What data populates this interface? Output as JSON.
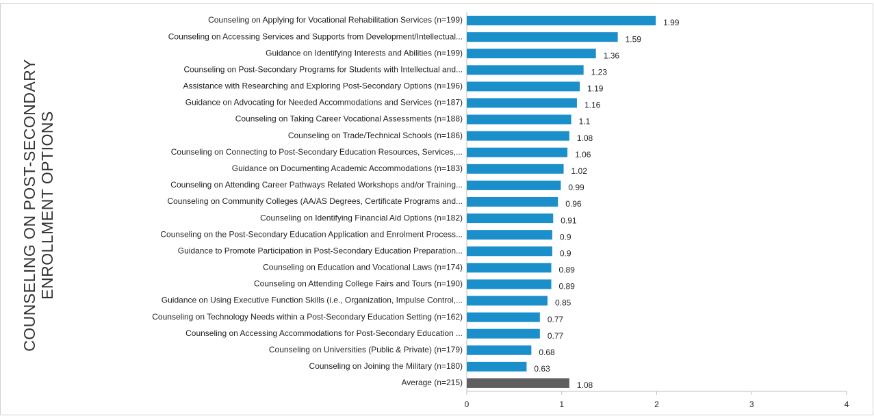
{
  "chart_data": {
    "type": "barh",
    "ylabel": [
      "COUNSELING ON POST-SECONDARY",
      "ENROLLMENT OPTIONS"
    ],
    "categories": [
      "Counseling on Applying for Vocational Rehabilitation Services (n=199)",
      "Counseling on Accessing Services and Supports from Development/Intellectual...",
      "Guidance on Identifying Interests and Abilities (n=199)",
      "Counseling on Post-Secondary Programs for Students with Intellectual and...",
      "Assistance with Researching and Exploring Post-Secondary Options (n=196)",
      "Guidance on Advocating for Needed Accommodations and Services (n=187)",
      "Counseling on Taking Career Vocational Assessments (n=188)",
      "Counseling on Trade/Technical Schools (n=186)",
      "Counseling on Connecting to Post-Secondary Education Resources, Services,...",
      "Guidance on Documenting Academic Accommodations (n=183)",
      "Counseling on Attending Career Pathways Related Workshops and/or Training...",
      "Counseling on Community Colleges (AA/AS Degrees, Certificate Programs and...",
      "Counseling on Identifying Financial Aid Options (n=182)",
      "Counseling on the Post-Secondary Education Application and Enrolment Process...",
      "Guidance to Promote Participation in Post-Secondary Education Preparation...",
      "Counseling on Education and Vocational Laws (n=174)",
      "Counseling on Attending College Fairs and Tours (n=190)",
      "Guidance on Using Executive Function Skills (i.e., Organization, Impulse Control,...",
      "Counseling on Technology Needs within a Post-Secondary Education Setting (n=162)",
      "Counseling on Accessing Accommodations for Post-Secondary Education ...",
      "Counseling on Universities (Public & Private) (n=179)",
      "Counseling on Joining the Military (n=180)",
      "Average (n=215)"
    ],
    "values": [
      1.99,
      1.59,
      1.36,
      1.23,
      1.19,
      1.16,
      1.1,
      1.08,
      1.06,
      1.02,
      0.99,
      0.96,
      0.91,
      0.9,
      0.9,
      0.89,
      0.89,
      0.85,
      0.77,
      0.77,
      0.68,
      0.63,
      1.08
    ],
    "colors": [
      "#1a8fc9",
      "#1a8fc9",
      "#1a8fc9",
      "#1a8fc9",
      "#1a8fc9",
      "#1a8fc9",
      "#1a8fc9",
      "#1a8fc9",
      "#1a8fc9",
      "#1a8fc9",
      "#1a8fc9",
      "#1a8fc9",
      "#1a8fc9",
      "#1a8fc9",
      "#1a8fc9",
      "#1a8fc9",
      "#1a8fc9",
      "#1a8fc9",
      "#1a8fc9",
      "#1a8fc9",
      "#1a8fc9",
      "#1a8fc9",
      "#5f5f5f"
    ],
    "xlim": [
      0,
      4
    ],
    "xticks": [
      0,
      1,
      2,
      3,
      4
    ]
  }
}
